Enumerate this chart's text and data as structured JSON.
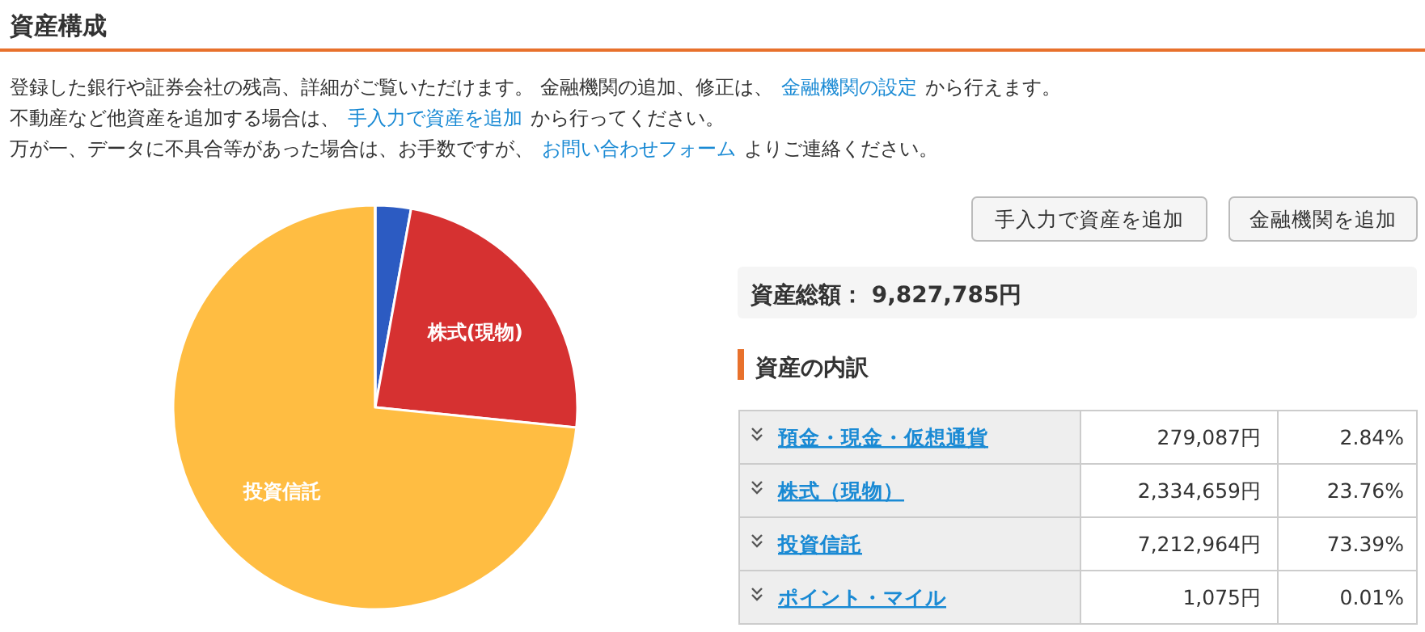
{
  "chart_data": {
    "type": "pie",
    "title": "資産構成",
    "subtitle": "資産の内訳",
    "categories": [
      null,
      "株式(現物)",
      "投資信託",
      null
    ],
    "values": [
      2.84,
      23.76,
      73.39,
      0.01
    ],
    "colors": [
      "#2c5bc2",
      "#d63131",
      "#ffbd42",
      "#3a9d48"
    ],
    "annotations": [
      "登録した銀行や証券会社の残高、詳細がご覧いただけます。 金融機関の追加、修正は、",
      "金融機関の設定",
      "から行えます。",
      "不動産など他資産を追加する場合は、",
      "手入力で資産を追加",
      "から行ってください。",
      "万が一、データに不具合等があった場合は、お手数ですが、",
      "お問い合わせフォーム",
      "よりご連絡ください。",
      "手入力で資産を追加",
      "金融機関を追加",
      "資産総額： 9,827,785円",
      "預金・現金・仮想通貨",
      "株式（現物）",
      "投資信託",
      "ポイント・マイル",
      "279,087円",
      "2,334,659円",
      "7,212,964円",
      "1,075円",
      "2.84%",
      "23.76%",
      "73.39%",
      "0.01%"
    ]
  }
}
